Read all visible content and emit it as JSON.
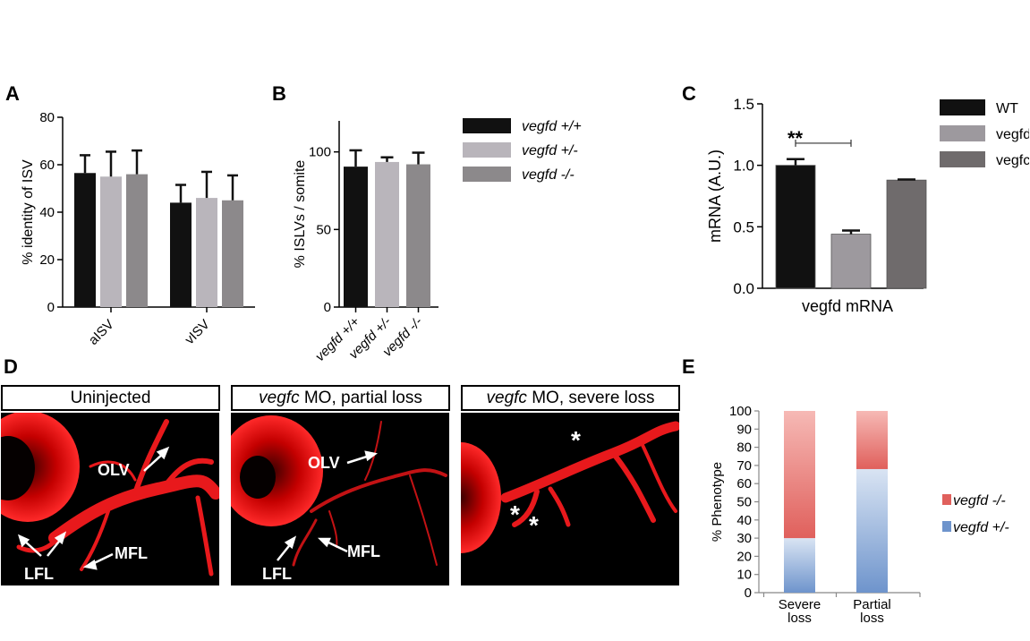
{
  "panel_labels": {
    "a": "A",
    "b": "B",
    "c": "C",
    "d": "D",
    "e": "E"
  },
  "chart_data": [
    {
      "panel": "A",
      "type": "bar",
      "ylabel": "% identity of ISV",
      "xlabel": "",
      "ylim": [
        0,
        80
      ],
      "yticks": [
        "0",
        "20",
        "40",
        "60",
        "80"
      ],
      "categories": [
        "aISV",
        "vISV"
      ],
      "series": [
        {
          "name": "vegfd +/+",
          "color": "#111111",
          "values": [
            56.5,
            44
          ],
          "errors": [
            7.5,
            7.5
          ]
        },
        {
          "name": "vegfd +/-",
          "color": "#b9b5bb",
          "values": [
            55,
            46
          ],
          "errors": [
            10.5,
            11
          ]
        },
        {
          "name": "vegfd -/-",
          "color": "#8c898b",
          "values": [
            56,
            45
          ],
          "errors": [
            10,
            10.5
          ]
        }
      ]
    },
    {
      "panel": "B",
      "type": "bar",
      "ylabel": "% ISLVs / somite",
      "xlabel": "",
      "ylim": [
        0,
        120
      ],
      "yticks": [
        "0",
        "50",
        "100"
      ],
      "categories": [
        "vegfd +/+",
        "vegfd +/-",
        "vegfd -/-"
      ],
      "values": [
        90.5,
        93.5,
        92
      ],
      "errors": [
        10.5,
        3,
        7.5
      ],
      "colors": [
        "#111111",
        "#b9b5bb",
        "#8c898b"
      ],
      "legend": [
        {
          "label": "vegfd +/+",
          "color": "#111111"
        },
        {
          "label": "vegfd +/-",
          "color": "#b9b5bb"
        },
        {
          "label": "vegfd -/-",
          "color": "#8c898b"
        }
      ]
    },
    {
      "panel": "C",
      "type": "bar",
      "ylabel": "mRNA (A.U.)",
      "xlabel": "vegfd mRNA",
      "ylim": [
        0,
        1.5
      ],
      "yticks": [
        "0.0",
        "0.5",
        "1.0",
        "1.5"
      ],
      "categories": [
        "WT",
        "vegfd -/-",
        "vegfc -/-"
      ],
      "values": [
        1.0,
        0.44,
        0.88
      ],
      "errors": [
        0.05,
        0.03,
        0.005
      ],
      "colors": [
        "#111111",
        "#9d999e",
        "#6f6b6c"
      ],
      "significance": "**",
      "legend": [
        {
          "label": "WT",
          "color": "#111111"
        },
        {
          "label": "vegfd -/-",
          "color": "#9d999e"
        },
        {
          "label": "vegfc -/-",
          "color": "#6f6b6c"
        }
      ]
    },
    {
      "panel": "E",
      "type": "bar",
      "stacked": true,
      "ylabel": "% Phenotype",
      "ylim": [
        0,
        100
      ],
      "yticks": [
        "0",
        "10",
        "20",
        "30",
        "40",
        "50",
        "60",
        "70",
        "80",
        "90",
        "100"
      ],
      "categories": [
        "Severe loss",
        "Partial loss"
      ],
      "category_lines": [
        [
          "Severe",
          "loss"
        ],
        [
          "Partial",
          "loss"
        ]
      ],
      "series": [
        {
          "name": "vegfd +/-",
          "color": "#6e94cc",
          "values": [
            30,
            68
          ]
        },
        {
          "name": "vegfd -/-",
          "color": "#e0605c",
          "values": [
            70,
            32
          ]
        }
      ]
    }
  ],
  "panel_d": {
    "titles": {
      "uninjected": "Uninjected",
      "partial_gene": "vegfc",
      "partial_rest": " MO, partial loss",
      "severe_gene": "vegfc",
      "severe_rest": " MO, severe loss"
    },
    "annotations": {
      "olv": "OLV",
      "mfl": "MFL",
      "lfl": "LFL",
      "asterisk": "*"
    }
  }
}
